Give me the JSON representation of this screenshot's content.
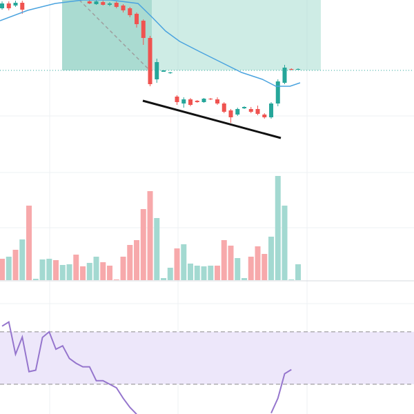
{
  "chart_data": [
    {
      "type": "candlestick",
      "up_color": "#26a69a",
      "down_color": "#ef5350",
      "xlim": [
        -0.31,
        61.23
      ],
      "ylim": [
        0,
        250
      ],
      "x": [
        0,
        1,
        2,
        3,
        4,
        5,
        6,
        7,
        8,
        9,
        10,
        11,
        12,
        13,
        14,
        15,
        16,
        17,
        18,
        19,
        20,
        21,
        22,
        23,
        24,
        25,
        26,
        27,
        28,
        29,
        30,
        31,
        32,
        33,
        34,
        35,
        36,
        37,
        38,
        39,
        40,
        41,
        42,
        43,
        44
      ],
      "open": [
        238,
        245,
        242,
        246,
        null,
        null,
        null,
        null,
        null,
        null,
        null,
        null,
        null,
        248,
        244,
        247,
        243,
        246,
        242,
        238,
        230,
        220,
        195,
        135,
        146,
        144,
        110,
        100,
        106,
        104,
        102,
        107,
        106,
        100,
        90,
        84,
        93,
        92,
        92,
        84,
        80,
        100,
        130,
        150,
        150
      ],
      "high": [
        248,
        248,
        249,
        249,
        null,
        null,
        null,
        null,
        null,
        null,
        null,
        null,
        null,
        250,
        250,
        249,
        247,
        248,
        244,
        240,
        232,
        222,
        198,
        165,
        148,
        146,
        112,
        109,
        108,
        105,
        108,
        108,
        109,
        102,
        92,
        94,
        96,
        95,
        97,
        86,
        102,
        135,
        156,
        151,
        151
      ],
      "low": [
        236,
        235,
        240,
        230,
        null,
        null,
        null,
        null,
        null,
        null,
        null,
        null,
        null,
        244,
        243,
        242,
        241,
        238,
        232,
        225,
        210,
        185,
        125,
        130,
        146,
        143,
        98,
        94,
        96,
        101,
        101,
        105,
        98,
        86,
        72,
        82,
        92,
        86,
        83,
        78,
        78,
        96,
        128,
        148,
        149
      ],
      "close": [
        245,
        238,
        246,
        236,
        null,
        null,
        null,
        null,
        null,
        null,
        null,
        null,
        null,
        245,
        248,
        243,
        245,
        240,
        235,
        228,
        215,
        195,
        128,
        160,
        148,
        145,
        102,
        106,
        98,
        102,
        107,
        106,
        100,
        88,
        80,
        92,
        95,
        88,
        85,
        80,
        100,
        132,
        152,
        149,
        150
      ],
      "ma": {
        "color": "#4aa3df",
        "x": [
          -0.31,
          3.8,
          7.9,
          12,
          16.1,
          20.2,
          22.3,
          24.3,
          26.4,
          29.4,
          32.5,
          35.6,
          38.7,
          40.7,
          42.8,
          44.3
        ],
        "values": [
          220,
          235,
          245,
          250,
          250,
          245,
          225,
          205,
          190,
          175,
          160,
          145,
          135,
          125,
          125,
          130
        ]
      }
    },
    {
      "type": "bar",
      "xlim": [
        -0.31,
        61.23
      ],
      "ylim": [
        0,
        160
      ],
      "x": [
        0,
        1,
        2,
        3,
        4,
        5,
        6,
        7,
        8,
        9,
        10,
        11,
        12,
        13,
        14,
        15,
        16,
        17,
        18,
        19,
        20,
        21,
        22,
        23,
        24,
        25,
        26,
        27,
        28,
        29,
        30,
        31,
        32,
        33,
        34,
        35,
        36,
        37,
        38,
        39,
        40,
        41,
        42,
        43,
        44
      ],
      "values": [
        31,
        34,
        44,
        59,
        108,
        2,
        30,
        31,
        29,
        22,
        23,
        37,
        20,
        25,
        34,
        26,
        21,
        1,
        34,
        51,
        58,
        103,
        129,
        90,
        3,
        18,
        46,
        52,
        24,
        21,
        20,
        21,
        21,
        58,
        50,
        32,
        3,
        34,
        49,
        38,
        63,
        151,
        108,
        1,
        23
      ],
      "colors": [
        "#f7a9ab",
        "#a3d9d1",
        "#f7a9ab",
        "#a3d9d1",
        "#f7a9ab",
        "#a3d9d1",
        "#a3d9d1",
        "#a3d9d1",
        "#f7a9ab",
        "#a3d9d1",
        "#a3d9d1",
        "#f7a9ab",
        "#f7a9ab",
        "#a3d9d1",
        "#a3d9d1",
        "#f7a9ab",
        "#f7a9ab",
        "#f7a9ab",
        "#f7a9ab",
        "#f7a9ab",
        "#f7a9ab",
        "#f7a9ab",
        "#f7a9ab",
        "#a3d9d1",
        "#a3d9d1",
        "#a3d9d1",
        "#f7a9ab",
        "#a3d9d1",
        "#a3d9d1",
        "#a3d9d1",
        "#a3d9d1",
        "#a3d9d1",
        "#f7a9ab",
        "#f7a9ab",
        "#f7a9ab",
        "#a3d9d1",
        "#a3d9d1",
        "#f7a9ab",
        "#f7a9ab",
        "#f7a9ab",
        "#a3d9d1",
        "#a3d9d1",
        "#a3d9d1",
        "#a3d9d1",
        "#a3d9d1"
      ]
    },
    {
      "type": "line",
      "color": "#9575cd",
      "band_color": "#ede7fa",
      "xlim": [
        -0.31,
        61.23
      ],
      "ylim": [
        7.3,
        107.3
      ],
      "levels": [
        70,
        30
      ],
      "x": [
        0,
        1,
        2,
        3,
        4,
        5,
        6,
        7,
        8,
        9,
        10,
        11,
        12,
        13,
        14,
        15,
        16,
        17,
        18,
        19,
        20,
        21,
        22,
        23,
        24,
        25,
        26,
        27,
        28,
        29,
        30,
        31,
        32,
        33,
        34,
        35,
        36,
        37,
        38,
        39,
        40,
        41,
        42,
        43
      ],
      "values": [
        74.3,
        77.5,
        52.9,
        66,
        39.6,
        40.7,
        65.7,
        70,
        56.7,
        59.3,
        49.7,
        46,
        43.3,
        43.3,
        32.7,
        32.7,
        30,
        27.3,
        19.3,
        12.4,
        7.1,
        null,
        null,
        null,
        null,
        null,
        null,
        null,
        null,
        null,
        null,
        null,
        null,
        null,
        null,
        null,
        null,
        null,
        null,
        null,
        8,
        19.3,
        38,
        41.2
      ]
    }
  ]
}
